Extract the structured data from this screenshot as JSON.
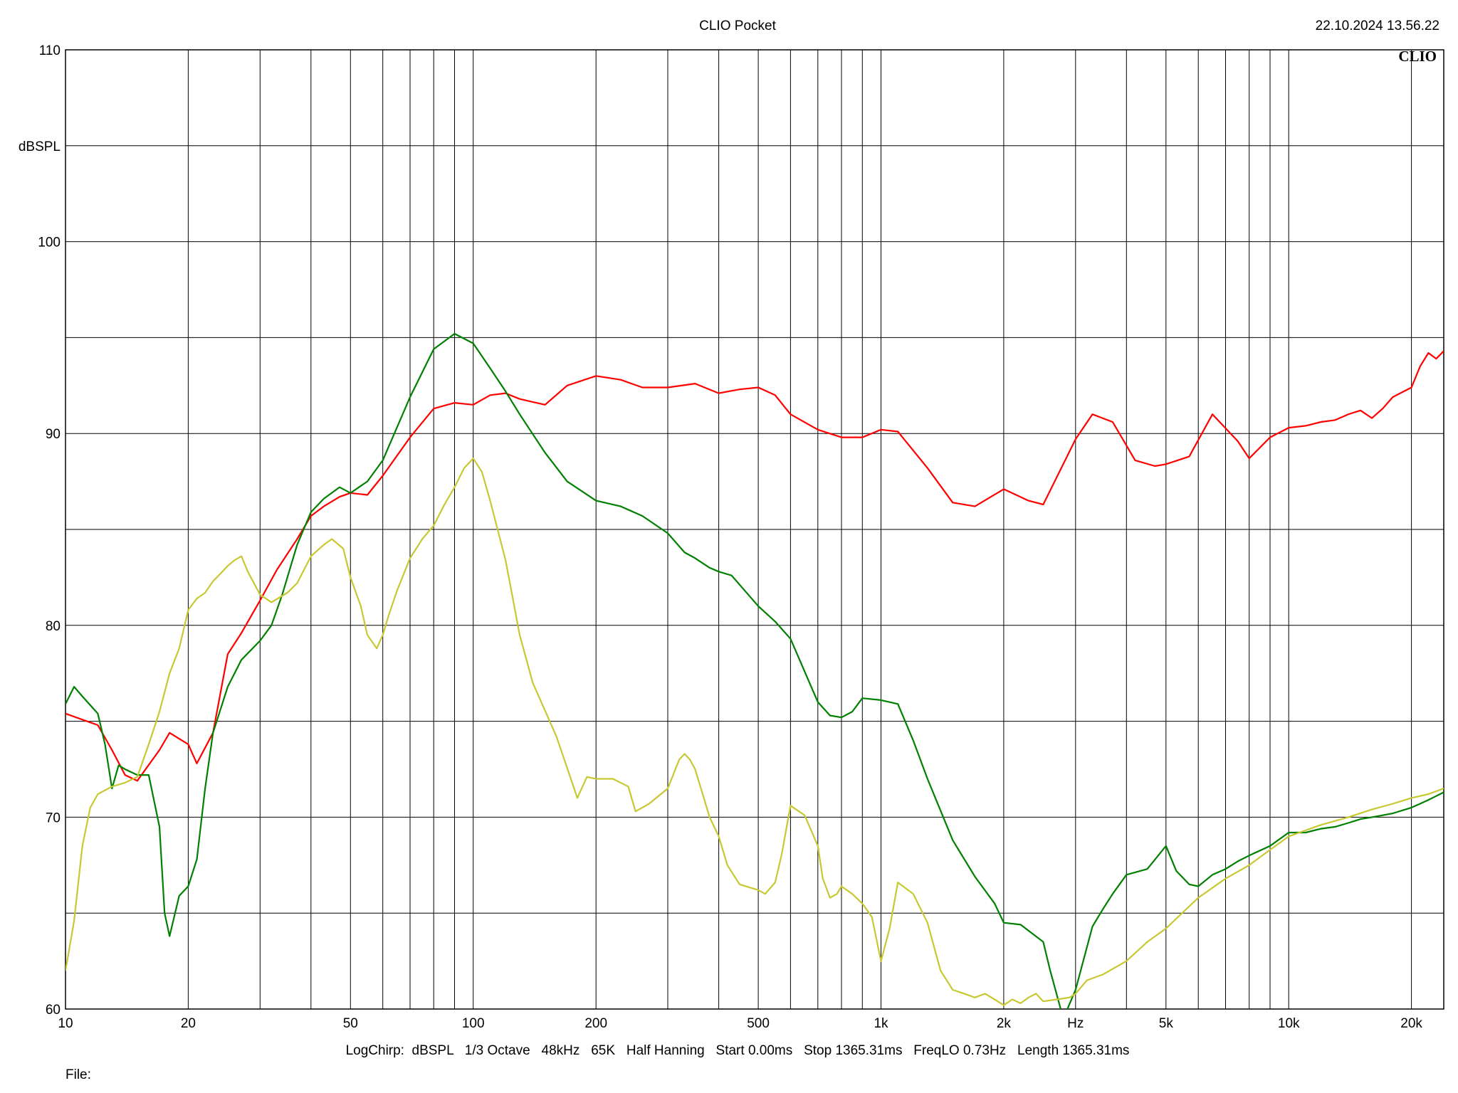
{
  "header": {
    "app_title": "CLIO Pocket",
    "timestamp": "22.10.2024 13.56.22",
    "logo": "CLIO"
  },
  "footer": {
    "settings": "LogChirp:  dBSPL   1/3 Octave   48kHz   65K   Half Hanning   Start 0.00ms   Stop 1365.31ms   FreqLO 0.73Hz   Length 1365.31ms",
    "file_label": "File:"
  },
  "chart_data": {
    "type": "line",
    "title": "CLIO Pocket",
    "ylabel": "dBSPL",
    "xlabel": "Hz",
    "x_scale": "log",
    "xlim": [
      10,
      24000
    ],
    "ylim": [
      60,
      110
    ],
    "grid": true,
    "x_tick_labels": [
      {
        "value": 10,
        "label": "10"
      },
      {
        "value": 20,
        "label": "20"
      },
      {
        "value": 50,
        "label": "50"
      },
      {
        "value": 100,
        "label": "100"
      },
      {
        "value": 200,
        "label": "200"
      },
      {
        "value": 500,
        "label": "500"
      },
      {
        "value": 1000,
        "label": "1k"
      },
      {
        "value": 2000,
        "label": "2k"
      },
      {
        "value": 5000,
        "label": "5k"
      },
      {
        "value": 10000,
        "label": "10k"
      },
      {
        "value": 20000,
        "label": "20k"
      }
    ],
    "x_unit_label_value": 3000,
    "y_tick_labels": [
      {
        "value": 60,
        "label": "60"
      },
      {
        "value": 70,
        "label": "70"
      },
      {
        "value": 80,
        "label": "80"
      },
      {
        "value": 90,
        "label": "90"
      },
      {
        "value": 100,
        "label": "100"
      },
      {
        "value": 110,
        "label": "110"
      }
    ],
    "y_unit_label_value": 105,
    "series": [
      {
        "color": "#ff0000",
        "x": [
          10,
          12,
          13,
          14,
          15,
          17,
          18,
          20,
          21,
          23,
          25,
          27,
          30,
          33,
          37,
          40,
          43,
          47,
          50,
          55,
          60,
          70,
          80,
          90,
          100,
          110,
          120,
          130,
          150,
          170,
          200,
          230,
          260,
          300,
          350,
          400,
          450,
          500,
          550,
          600,
          700,
          800,
          900,
          1000,
          1100,
          1300,
          1500,
          1700,
          2000,
          2300,
          2500,
          3000,
          3300,
          3700,
          4200,
          4700,
          5000,
          5700,
          6500,
          7500,
          8000,
          9000,
          10000,
          11000,
          12000,
          13000,
          14000,
          15000,
          16000,
          17000,
          18000,
          20000,
          21000,
          22000,
          23000,
          24000
        ],
        "y": [
          75.4,
          74.8,
          73.5,
          72.2,
          71.9,
          73.5,
          74.4,
          73.8,
          72.8,
          74.4,
          78.5,
          79.6,
          81.3,
          82.9,
          84.5,
          85.7,
          86.2,
          86.7,
          86.9,
          86.8,
          87.8,
          89.8,
          91.3,
          91.6,
          91.5,
          92.0,
          92.1,
          91.8,
          91.5,
          92.5,
          93.0,
          92.8,
          92.4,
          92.4,
          92.6,
          92.1,
          92.3,
          92.4,
          92.0,
          91.0,
          90.2,
          89.8,
          89.8,
          90.2,
          90.1,
          88.2,
          86.4,
          86.2,
          87.1,
          86.5,
          86.3,
          89.7,
          91.0,
          90.6,
          88.6,
          88.3,
          88.4,
          88.8,
          91.0,
          89.6,
          88.7,
          89.8,
          90.3,
          90.4,
          90.6,
          90.7,
          91.0,
          91.2,
          90.8,
          91.3,
          91.9,
          92.4,
          93.5,
          94.2,
          93.9,
          94.3
        ]
      },
      {
        "color": "#008000",
        "x": [
          10,
          10.5,
          11,
          12,
          12.5,
          13,
          13.5,
          14,
          15,
          16,
          17,
          17.5,
          18,
          19,
          20,
          21,
          22,
          23,
          25,
          27,
          30,
          32,
          34,
          37,
          40,
          43,
          47,
          50,
          55,
          60,
          70,
          80,
          90,
          100,
          110,
          120,
          130,
          150,
          170,
          200,
          230,
          260,
          300,
          330,
          350,
          380,
          400,
          430,
          500,
          550,
          600,
          700,
          750,
          800,
          850,
          900,
          1000,
          1100,
          1200,
          1300,
          1500,
          1700,
          1900,
          2000,
          2200,
          2500,
          2600,
          2800,
          3000,
          3300,
          3500,
          3700,
          4000,
          4500,
          5000,
          5300,
          5700,
          6000,
          6500,
          7000,
          7500,
          8000,
          9000,
          10000,
          11000,
          12000,
          13000,
          14000,
          15000,
          16000,
          17000,
          18000,
          20000,
          21000,
          22000,
          23000,
          24000
        ],
        "y": [
          75.9,
          76.8,
          76.3,
          75.4,
          73.8,
          71.5,
          72.7,
          72.5,
          72.2,
          72.2,
          69.5,
          65.0,
          63.8,
          65.9,
          66.4,
          67.8,
          71.5,
          74.4,
          76.8,
          78.2,
          79.2,
          80.0,
          81.6,
          84.2,
          85.9,
          86.6,
          87.2,
          86.9,
          87.5,
          88.6,
          91.9,
          94.4,
          95.2,
          94.7,
          93.4,
          92.2,
          91.0,
          89.0,
          87.5,
          86.5,
          86.2,
          85.7,
          84.8,
          83.8,
          83.5,
          83.0,
          82.8,
          82.6,
          81.0,
          80.2,
          79.3,
          76.0,
          75.3,
          75.2,
          75.5,
          76.2,
          76.1,
          75.9,
          74.0,
          72.0,
          68.8,
          66.9,
          65.5,
          64.5,
          64.4,
          63.5,
          62.0,
          59.5,
          61.0,
          64.3,
          65.2,
          66.0,
          67.0,
          67.3,
          68.5,
          67.2,
          66.5,
          66.4,
          67.0,
          67.3,
          67.7,
          68.0,
          68.5,
          69.2,
          69.2,
          69.4,
          69.5,
          69.7,
          69.9,
          70.0,
          70.1,
          70.2,
          70.5,
          70.7,
          70.9,
          71.1,
          71.3
        ]
      },
      {
        "color": "#c8c832",
        "x": [
          10,
          10.5,
          11,
          11.5,
          12,
          13,
          14,
          15,
          16,
          17,
          18,
          19,
          20,
          21,
          22,
          23,
          24,
          25,
          26,
          27,
          28,
          30,
          32,
          35,
          37,
          40,
          43,
          45,
          48,
          50,
          53,
          55,
          58,
          60,
          62,
          65,
          70,
          75,
          80,
          85,
          90,
          95,
          100,
          105,
          110,
          120,
          130,
          140,
          160,
          180,
          190,
          200,
          220,
          240,
          250,
          270,
          300,
          320,
          330,
          340,
          350,
          380,
          400,
          420,
          450,
          500,
          520,
          550,
          570,
          600,
          650,
          700,
          720,
          750,
          780,
          800,
          850,
          900,
          950,
          1000,
          1050,
          1100,
          1200,
          1300,
          1400,
          1500,
          1600,
          1700,
          1800,
          1900,
          2000,
          2100,
          2200,
          2300,
          2400,
          2500,
          2700,
          2900,
          3000,
          3200,
          3500,
          4000,
          4500,
          5000,
          6000,
          7000,
          8000,
          9000,
          10000,
          12000,
          14000,
          16000,
          18000,
          20000,
          22000,
          24000
        ],
        "y": [
          62.0,
          64.6,
          68.5,
          70.5,
          71.2,
          71.6,
          71.8,
          72.1,
          73.8,
          75.5,
          77.5,
          78.8,
          80.8,
          81.4,
          81.7,
          82.3,
          82.7,
          83.1,
          83.4,
          83.6,
          82.8,
          81.6,
          81.2,
          81.7,
          82.2,
          83.6,
          84.2,
          84.5,
          84.0,
          82.5,
          81.0,
          79.5,
          78.8,
          79.5,
          80.5,
          81.8,
          83.5,
          84.5,
          85.2,
          86.3,
          87.2,
          88.2,
          88.7,
          88.0,
          86.5,
          83.4,
          79.5,
          77.0,
          74.2,
          71.0,
          72.1,
          72.0,
          72.0,
          71.6,
          70.3,
          70.7,
          71.5,
          73.0,
          73.3,
          73.0,
          72.5,
          70.0,
          69.0,
          67.5,
          66.5,
          66.2,
          66.0,
          66.6,
          68.0,
          70.6,
          70.1,
          68.5,
          66.8,
          65.8,
          66.0,
          66.4,
          66.0,
          65.5,
          64.8,
          62.5,
          64.2,
          66.6,
          66.0,
          64.5,
          62.0,
          61.0,
          60.8,
          60.6,
          60.8,
          60.5,
          60.2,
          60.5,
          60.3,
          60.6,
          60.8,
          60.4,
          60.5,
          60.6,
          60.8,
          61.5,
          61.8,
          62.5,
          63.5,
          64.2,
          65.8,
          66.8,
          67.5,
          68.3,
          69.0,
          69.6,
          70.0,
          70.4,
          70.7,
          71.0,
          71.2,
          71.5
        ]
      }
    ]
  }
}
